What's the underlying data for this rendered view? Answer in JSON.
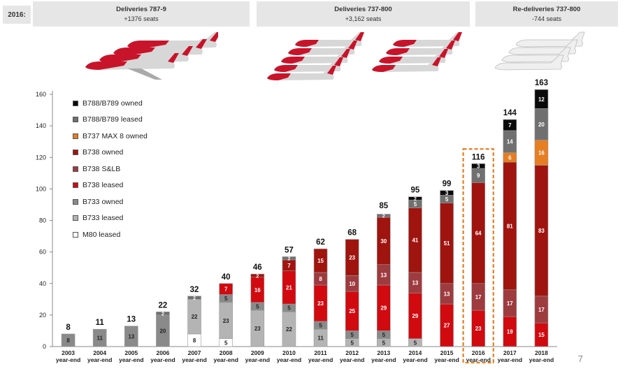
{
  "header": {
    "year_label": "2016:",
    "boxes": [
      {
        "title": "Deliveries 787-9",
        "sub": "+1376 seats"
      },
      {
        "title": "Deliveries 737-800",
        "sub": "+3,162 seats"
      },
      {
        "title": "Re-deliveries 737-800",
        "sub": "-744 seats"
      }
    ]
  },
  "page_number": "7",
  "colors": {
    "B788/B789 owned": "#0a0a0a",
    "B788/B789 leased": "#707070",
    "B737 MAX 8 owned": "#e67e22",
    "B738 owned": "#a0140f",
    "B738 S&LB": "#9e3b3f",
    "B738 leased": "#d10a10",
    "B733 owned": "#8a8a8a",
    "B733 leased": "#b4b4b4",
    "M80 leased": "#ffffff"
  },
  "chart_data": {
    "type": "bar",
    "stacked": true,
    "categories": [
      "2003\nyear-end",
      "2004\nyear-end",
      "2005\nyear-end",
      "2006\nyear-end",
      "2007\nyear-end",
      "2008\nyear-end",
      "2009\nyear-end",
      "2010\nyear-end",
      "2011\nyear-end",
      "2012\nyear-end",
      "2013\nyear-end",
      "2014\nyear-end",
      "2015\nyear-end",
      "2016\nyear-end",
      "2017\nyear-end",
      "2018\nyear-end"
    ],
    "ylim": [
      0,
      160
    ],
    "yticks": [
      0,
      20,
      40,
      60,
      80,
      100,
      120,
      140,
      160
    ],
    "highlight_index": 13,
    "legend": [
      "B788/B789 owned",
      "B788/B789 leased",
      "B737 MAX 8 owned",
      "B738 owned",
      "B738 S&LB",
      "B738 leased",
      "B733 owned",
      "B733 leased",
      "M80 leased"
    ],
    "totals": [
      8,
      11,
      13,
      22,
      32,
      40,
      46,
      57,
      62,
      68,
      85,
      95,
      99,
      116,
      144,
      163
    ],
    "series": [
      {
        "name": "M80 leased",
        "values": [
          0,
          0,
          0,
          0,
          8,
          5,
          0,
          0,
          0,
          0,
          0,
          0,
          0,
          0,
          0,
          0
        ]
      },
      {
        "name": "B733 leased",
        "values": [
          0,
          0,
          0,
          0,
          22,
          23,
          23,
          22,
          11,
          5,
          5,
          5,
          0,
          0,
          0,
          0
        ]
      },
      {
        "name": "B733 owned",
        "values": [
          8,
          11,
          13,
          20,
          0,
          5,
          5,
          5,
          5,
          5,
          5,
          0,
          0,
          0,
          0,
          0
        ]
      },
      {
        "name": "B738 leased",
        "values": [
          0,
          0,
          0,
          0,
          0,
          7,
          16,
          21,
          23,
          25,
          29,
          29,
          27,
          23,
          19,
          15
        ]
      },
      {
        "name": "B738 S&LB",
        "values": [
          0,
          0,
          0,
          0,
          0,
          0,
          0,
          0,
          8,
          10,
          13,
          13,
          13,
          17,
          17,
          17
        ]
      },
      {
        "name": "B738 owned",
        "values": [
          0,
          0,
          0,
          0,
          0,
          0,
          2,
          7,
          15,
          23,
          30,
          41,
          51,
          64,
          81,
          83
        ]
      },
      {
        "name": "B737 MAX 8 owned",
        "values": [
          0,
          0,
          0,
          0,
          0,
          0,
          0,
          0,
          0,
          0,
          0,
          0,
          0,
          0,
          6,
          16
        ]
      },
      {
        "name": "B788/B789 leased",
        "values": [
          0,
          0,
          0,
          2,
          2,
          0,
          0,
          2,
          0,
          0,
          2,
          5,
          5,
          9,
          14,
          20
        ]
      },
      {
        "name": "B788/B789 owned",
        "values": [
          0,
          0,
          0,
          0,
          0,
          0,
          0,
          0,
          0,
          0,
          0,
          2,
          3,
          3,
          7,
          12
        ]
      }
    ]
  }
}
